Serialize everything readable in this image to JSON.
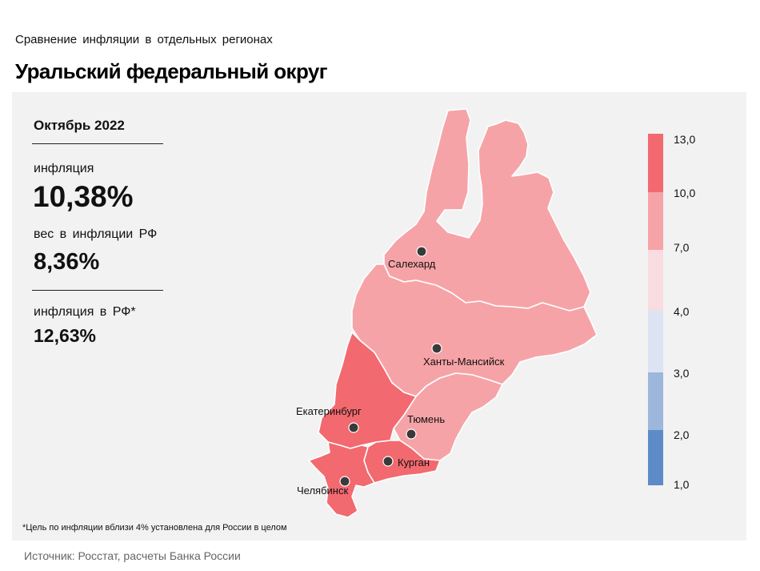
{
  "header": {
    "subtitle": "Сравнение инфляции в отдельных регионах",
    "title": "Уральский федеральный округ"
  },
  "stats": {
    "period": "Октябрь 2022",
    "inflation_label": "инфляция",
    "inflation_value": "10,38%",
    "weight_label": "вес в инфляции РФ",
    "weight_value": "8,36%",
    "rf_label": "инфляция в РФ*",
    "rf_value": "12,63%"
  },
  "map": {
    "cities": [
      "Салехард",
      "Ханты-Мансийск",
      "Екатеринбург",
      "Тюмень",
      "Курган",
      "Челябинск"
    ],
    "regions": [
      {
        "name": "Ямало-Ненецкий АО",
        "bin": "7,0–10,0",
        "color": "#f6a3a7"
      },
      {
        "name": "Ханты-Мансийский АО",
        "bin": "7,0–10,0",
        "color": "#f6a3a7"
      },
      {
        "name": "Тюменская область",
        "bin": "7,0–10,0",
        "color": "#f6a3a7"
      },
      {
        "name": "Свердловская область",
        "bin": "10,0–13,0",
        "color": "#f2696f"
      },
      {
        "name": "Курганская область",
        "bin": "10,0–13,0",
        "color": "#f2696f"
      },
      {
        "name": "Челябинская область",
        "bin": "10,0–13,0",
        "color": "#f2696f"
      }
    ]
  },
  "legend": {
    "labels": [
      "13,0",
      "10,0",
      "7,0",
      "4,0",
      "3,0",
      "2,0",
      "1,0"
    ],
    "colors": [
      "#f2696f",
      "#f6a3a7",
      "#f9dcdf",
      "#dce3f3",
      "#9db6db",
      "#5d8bc8"
    ]
  },
  "footnote": "*Цель по инфляции вблизи 4% установлена для России в целом",
  "source": "Источник: Росстат, расчеты Банка России"
}
